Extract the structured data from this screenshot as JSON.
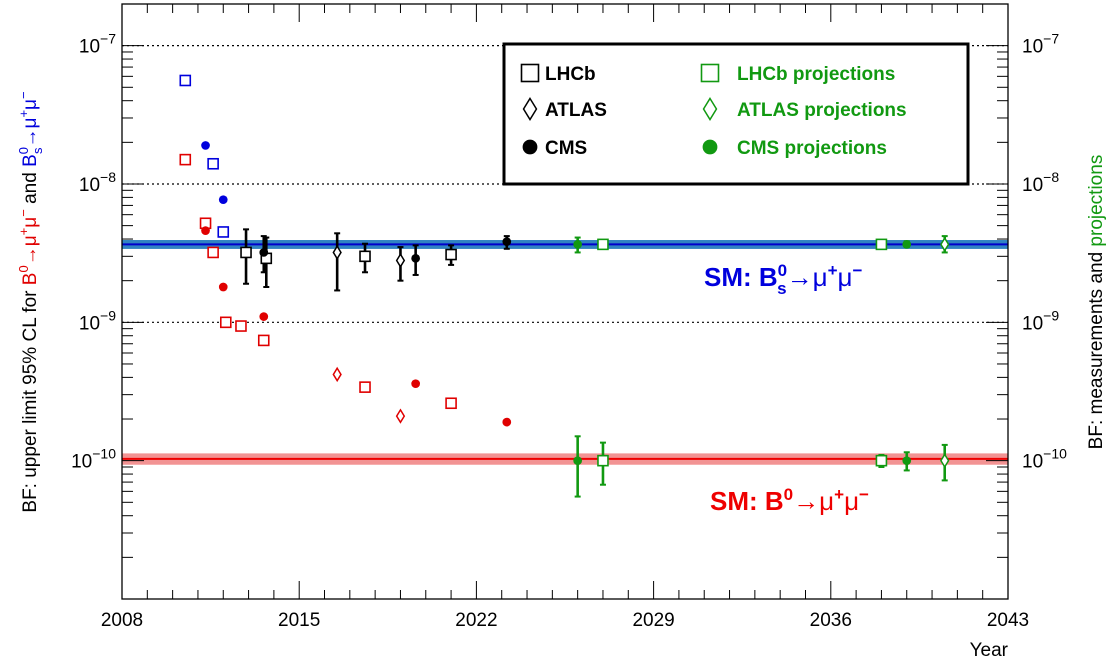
{
  "chart_data": {
    "type": "scatter",
    "x_axis": {
      "label": "Year",
      "range": [
        2008,
        2043
      ],
      "ticks": [
        2008,
        2015,
        2022,
        2029,
        2036,
        2043
      ],
      "tick_labels": [
        "2008",
        "2015",
        "2022",
        "2029",
        "2036",
        "2043"
      ]
    },
    "y_axis": {
      "scale": "log",
      "range": [
        1e-11,
        2e-07
      ],
      "major_ticks": [
        1e-10,
        1e-09,
        1e-08,
        1e-07
      ],
      "gridlines_dotted": [
        1e-09,
        1e-08,
        1e-07
      ],
      "left_label": {
        "prefix": "BF: upper limit 95% CL for ",
        "b0": "B",
        "b0_sup": "0",
        "arrow": "→",
        "mu": "μ",
        "plus": "+",
        "minus": "−",
        "and": " and ",
        "bs": "B",
        "bs_sub": "s",
        "bs_sup": "0"
      },
      "right_label": {
        "part1": "BF: measurements and ",
        "part2": "projections"
      }
    },
    "colors": {
      "lhcb_limit_bs": "#0000dd",
      "limit_b0": "#e00000",
      "measurement": "#000000",
      "projection": "#119911",
      "sm_bs_band": "#1a75bb",
      "sm_bs_line": "#0000cc",
      "sm_b0_band": "#f08080",
      "sm_b0_line": "#ee0000"
    },
    "legend": {
      "position": "top-center",
      "entries": [
        {
          "label": "LHCb",
          "marker": "open-square",
          "color": "#000000"
        },
        {
          "label": "ATLAS",
          "marker": "open-diamond",
          "color": "#000000"
        },
        {
          "label": "CMS",
          "marker": "filled-circle",
          "color": "#000000"
        },
        {
          "label": "LHCb projections",
          "marker": "open-square",
          "color": "#119911"
        },
        {
          "label": "ATLAS projections",
          "marker": "open-diamond",
          "color": "#119911"
        },
        {
          "label": "CMS projections",
          "marker": "filled-circle",
          "color": "#119911"
        }
      ]
    },
    "sm_lines": {
      "bs": {
        "value": 3.66e-09,
        "band": [
          3.45e-09,
          3.87e-09
        ],
        "label": {
          "pre": "SM: B",
          "sub": "s",
          "sup": "0",
          "arrow": "→",
          "mu": "μ",
          "plus": "+",
          "minus": "−"
        }
      },
      "b0": {
        "value": 1.03e-10,
        "band": [
          9.5e-11,
          1.11e-10
        ],
        "label": {
          "pre": "SM: B",
          "sup": "0",
          "arrow": "→",
          "mu": "μ",
          "plus": "+",
          "minus": "−"
        }
      }
    },
    "series": [
      {
        "name": "LHCb",
        "decay": "Bs",
        "kind": "limit",
        "marker": "open-square",
        "color": "#0000dd",
        "points": [
          {
            "x": 2010.5,
            "y": 5.6e-08
          },
          {
            "x": 2011.6,
            "y": 1.4e-08
          },
          {
            "x": 2012.0,
            "y": 4.5e-09
          }
        ]
      },
      {
        "name": "CMS",
        "decay": "Bs",
        "kind": "limit",
        "marker": "filled-circle",
        "color": "#0000dd",
        "points": [
          {
            "x": 2011.3,
            "y": 1.9e-08
          },
          {
            "x": 2012.0,
            "y": 7.7e-09
          }
        ]
      },
      {
        "name": "LHCb",
        "decay": "B0",
        "kind": "limit",
        "marker": "open-square",
        "color": "#e00000",
        "points": [
          {
            "x": 2010.5,
            "y": 1.5e-08
          },
          {
            "x": 2011.3,
            "y": 5.2e-09
          },
          {
            "x": 2011.6,
            "y": 3.2e-09
          },
          {
            "x": 2012.1,
            "y": 1e-09
          },
          {
            "x": 2012.7,
            "y": 9.4e-10
          },
          {
            "x": 2013.6,
            "y": 7.4e-10
          },
          {
            "x": 2017.6,
            "y": 3.4e-10
          },
          {
            "x": 2021.0,
            "y": 2.6e-10
          }
        ]
      },
      {
        "name": "CMS",
        "decay": "B0",
        "kind": "limit",
        "marker": "filled-circle",
        "color": "#e00000",
        "points": [
          {
            "x": 2011.3,
            "y": 4.6e-09
          },
          {
            "x": 2012.0,
            "y": 1.8e-09
          },
          {
            "x": 2013.6,
            "y": 1.1e-09
          },
          {
            "x": 2019.6,
            "y": 3.6e-10
          },
          {
            "x": 2023.2,
            "y": 1.9e-10
          }
        ]
      },
      {
        "name": "ATLAS",
        "decay": "B0",
        "kind": "limit",
        "marker": "open-diamond",
        "color": "#e00000",
        "points": [
          {
            "x": 2016.5,
            "y": 4.2e-10
          },
          {
            "x": 2019.0,
            "y": 2.1e-10
          }
        ]
      },
      {
        "name": "LHCb",
        "decay": "Bs",
        "kind": "measurement",
        "marker": "open-square",
        "color": "#000000",
        "points": [
          {
            "x": 2012.9,
            "y": 3.2e-09,
            "lo": 1.9e-09,
            "hi": 4.7e-09
          },
          {
            "x": 2013.7,
            "y": 2.9e-09,
            "lo": 1.8e-09,
            "hi": 4.1e-09
          },
          {
            "x": 2017.6,
            "y": 3e-09,
            "lo": 2.3e-09,
            "hi": 3.7e-09
          },
          {
            "x": 2021.0,
            "y": 3.09e-09,
            "lo": 2.6e-09,
            "hi": 3.6e-09
          }
        ]
      },
      {
        "name": "CMS",
        "decay": "Bs",
        "kind": "measurement",
        "marker": "filled-circle",
        "color": "#000000",
        "points": [
          {
            "x": 2013.6,
            "y": 3.2e-09,
            "lo": 2.3e-09,
            "hi": 4.2e-09
          },
          {
            "x": 2019.6,
            "y": 2.9e-09,
            "lo": 2.2e-09,
            "hi": 3.6e-09
          },
          {
            "x": 2023.2,
            "y": 3.83e-09,
            "lo": 3.4e-09,
            "hi": 4.2e-09
          }
        ]
      },
      {
        "name": "ATLAS",
        "decay": "Bs",
        "kind": "measurement",
        "marker": "open-diamond",
        "color": "#000000",
        "points": [
          {
            "x": 2016.5,
            "y": 3.2e-09,
            "lo": 1.7e-09,
            "hi": 4.4e-09
          },
          {
            "x": 2019.0,
            "y": 2.8e-09,
            "lo": 2e-09,
            "hi": 3.5e-09
          }
        ]
      },
      {
        "name": "CMS projections",
        "decay": "Bs",
        "kind": "projection",
        "marker": "filled-circle",
        "color": "#119911",
        "points": [
          {
            "x": 2026.0,
            "y": 3.66e-09,
            "lo": 3.2e-09,
            "hi": 4.1e-09
          },
          {
            "x": 2039.0,
            "y": 3.66e-09,
            "lo": 3.5e-09,
            "hi": 3.85e-09
          }
        ]
      },
      {
        "name": "LHCb projections",
        "decay": "Bs",
        "kind": "projection",
        "marker": "open-square",
        "color": "#119911",
        "points": [
          {
            "x": 2027.0,
            "y": 3.66e-09,
            "lo": 3.45e-09,
            "hi": 3.9e-09
          },
          {
            "x": 2038.0,
            "y": 3.66e-09,
            "lo": 3.55e-09,
            "hi": 3.8e-09
          }
        ]
      },
      {
        "name": "ATLAS projections",
        "decay": "Bs",
        "kind": "projection",
        "marker": "open-diamond",
        "color": "#119911",
        "points": [
          {
            "x": 2040.5,
            "y": 3.66e-09,
            "lo": 3.2e-09,
            "hi": 4.2e-09
          }
        ]
      },
      {
        "name": "CMS projections",
        "decay": "B0",
        "kind": "projection",
        "marker": "filled-circle",
        "color": "#119911",
        "points": [
          {
            "x": 2026.0,
            "y": 1e-10,
            "lo": 5.5e-11,
            "hi": 1.5e-10
          },
          {
            "x": 2039.0,
            "y": 1e-10,
            "lo": 8.5e-11,
            "hi": 1.15e-10
          }
        ]
      },
      {
        "name": "LHCb projections",
        "decay": "B0",
        "kind": "projection",
        "marker": "open-square",
        "color": "#119911",
        "points": [
          {
            "x": 2027.0,
            "y": 1e-10,
            "lo": 6.7e-11,
            "hi": 1.35e-10
          },
          {
            "x": 2038.0,
            "y": 1e-10,
            "lo": 9e-11,
            "hi": 1.1e-10
          }
        ]
      },
      {
        "name": "ATLAS projections",
        "decay": "B0",
        "kind": "projection",
        "marker": "open-diamond",
        "color": "#119911",
        "points": [
          {
            "x": 2040.5,
            "y": 1e-10,
            "lo": 7.2e-11,
            "hi": 1.3e-10
          }
        ]
      }
    ]
  }
}
